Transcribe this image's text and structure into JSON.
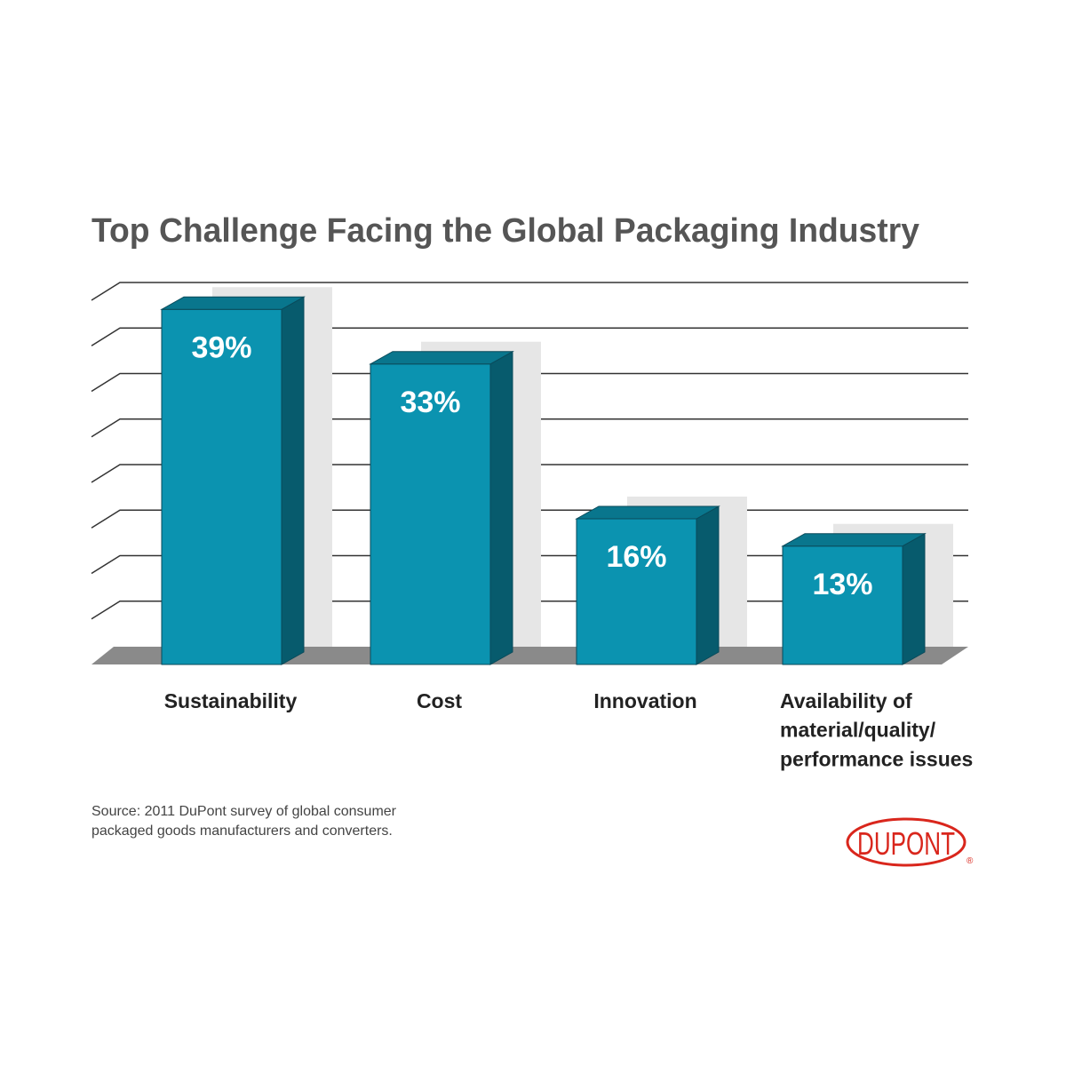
{
  "chart_data": {
    "type": "bar3d",
    "title": "Top Challenge Facing the Global Packaging Industry",
    "categories": [
      "Sustainability",
      "Cost",
      "Innovation",
      "Availability of\nmaterial/quality/\nperformance issues"
    ],
    "values": [
      39,
      33,
      16,
      13
    ],
    "value_labels": [
      "39%",
      "33%",
      "16%",
      "13%"
    ],
    "color": "#0b93b0",
    "ylim": [
      0,
      40
    ],
    "yticks": [
      0,
      5,
      10,
      15,
      20,
      25,
      30,
      35,
      40
    ],
    "grid": true,
    "source": "Source: 2011 DuPont survey of global consumer\npackaged goods manufacturers and converters.",
    "logo": "DUPONT",
    "logo_mark": "®"
  }
}
